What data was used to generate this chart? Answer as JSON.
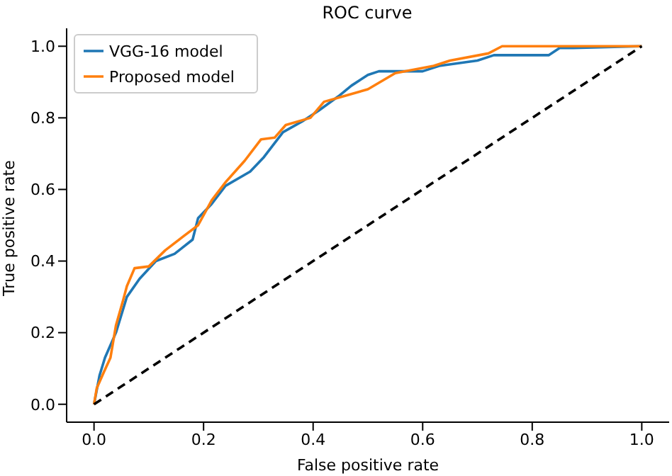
{
  "chart_data": {
    "type": "line",
    "title": "ROC curve",
    "xlabel": "False positive rate",
    "ylabel": "True positive rate",
    "xlim": [
      -0.05,
      1.05
    ],
    "ylim": [
      -0.05,
      1.05
    ],
    "xticks": [
      {
        "value": 0,
        "label": "0.0"
      },
      {
        "value": 0.2,
        "label": "0.2"
      },
      {
        "value": 0.4,
        "label": "0.4"
      },
      {
        "value": 0.6,
        "label": "0.6"
      },
      {
        "value": 0.8,
        "label": "0.8"
      },
      {
        "value": 1,
        "label": "1.0"
      }
    ],
    "yticks": [
      {
        "value": 0,
        "label": "0.0"
      },
      {
        "value": 0.2,
        "label": "0.2"
      },
      {
        "value": 0.4,
        "label": "0.4"
      },
      {
        "value": 0.6,
        "label": "0.6"
      },
      {
        "value": 0.8,
        "label": "0.8"
      },
      {
        "value": 1,
        "label": "1.0"
      }
    ],
    "grid": false,
    "legend": "top left",
    "marker": "none",
    "series": [
      {
        "name": "VGG-16 model",
        "color": "#1f77b4",
        "x": [
          0,
          0.01,
          0.02,
          0.04,
          0.06,
          0.083,
          0.113,
          0.147,
          0.18,
          0.19,
          0.215,
          0.24,
          0.285,
          0.31,
          0.345,
          0.38,
          0.41,
          0.446,
          0.47,
          0.5,
          0.52,
          0.6,
          0.63,
          0.7,
          0.73,
          0.83,
          0.85,
          0.875,
          1
        ],
        "values": [
          0,
          0.08,
          0.13,
          0.2,
          0.3,
          0.35,
          0.4,
          0.42,
          0.46,
          0.52,
          0.56,
          0.61,
          0.65,
          0.69,
          0.76,
          0.79,
          0.82,
          0.86,
          0.89,
          0.92,
          0.93,
          0.93,
          0.945,
          0.96,
          0.975,
          0.975,
          0.995,
          0.995,
          1
        ]
      },
      {
        "name": "Proposed model",
        "color": "#ff7f0e",
        "x": [
          0,
          0.005,
          0.018,
          0.03,
          0.04,
          0.053,
          0.06,
          0.074,
          0.1,
          0.13,
          0.164,
          0.19,
          0.215,
          0.24,
          0.275,
          0.305,
          0.33,
          0.35,
          0.395,
          0.42,
          0.455,
          0.5,
          0.55,
          0.62,
          0.65,
          0.72,
          0.745,
          1
        ],
        "values": [
          0,
          0.045,
          0.09,
          0.13,
          0.22,
          0.29,
          0.33,
          0.38,
          0.385,
          0.43,
          0.47,
          0.5,
          0.57,
          0.62,
          0.68,
          0.74,
          0.745,
          0.78,
          0.8,
          0.845,
          0.86,
          0.88,
          0.925,
          0.945,
          0.96,
          0.98,
          1,
          1
        ]
      },
      {
        "color": "#000000",
        "line_style": "dashed",
        "x": [
          0,
          1
        ],
        "values": [
          0,
          1
        ]
      }
    ]
  }
}
